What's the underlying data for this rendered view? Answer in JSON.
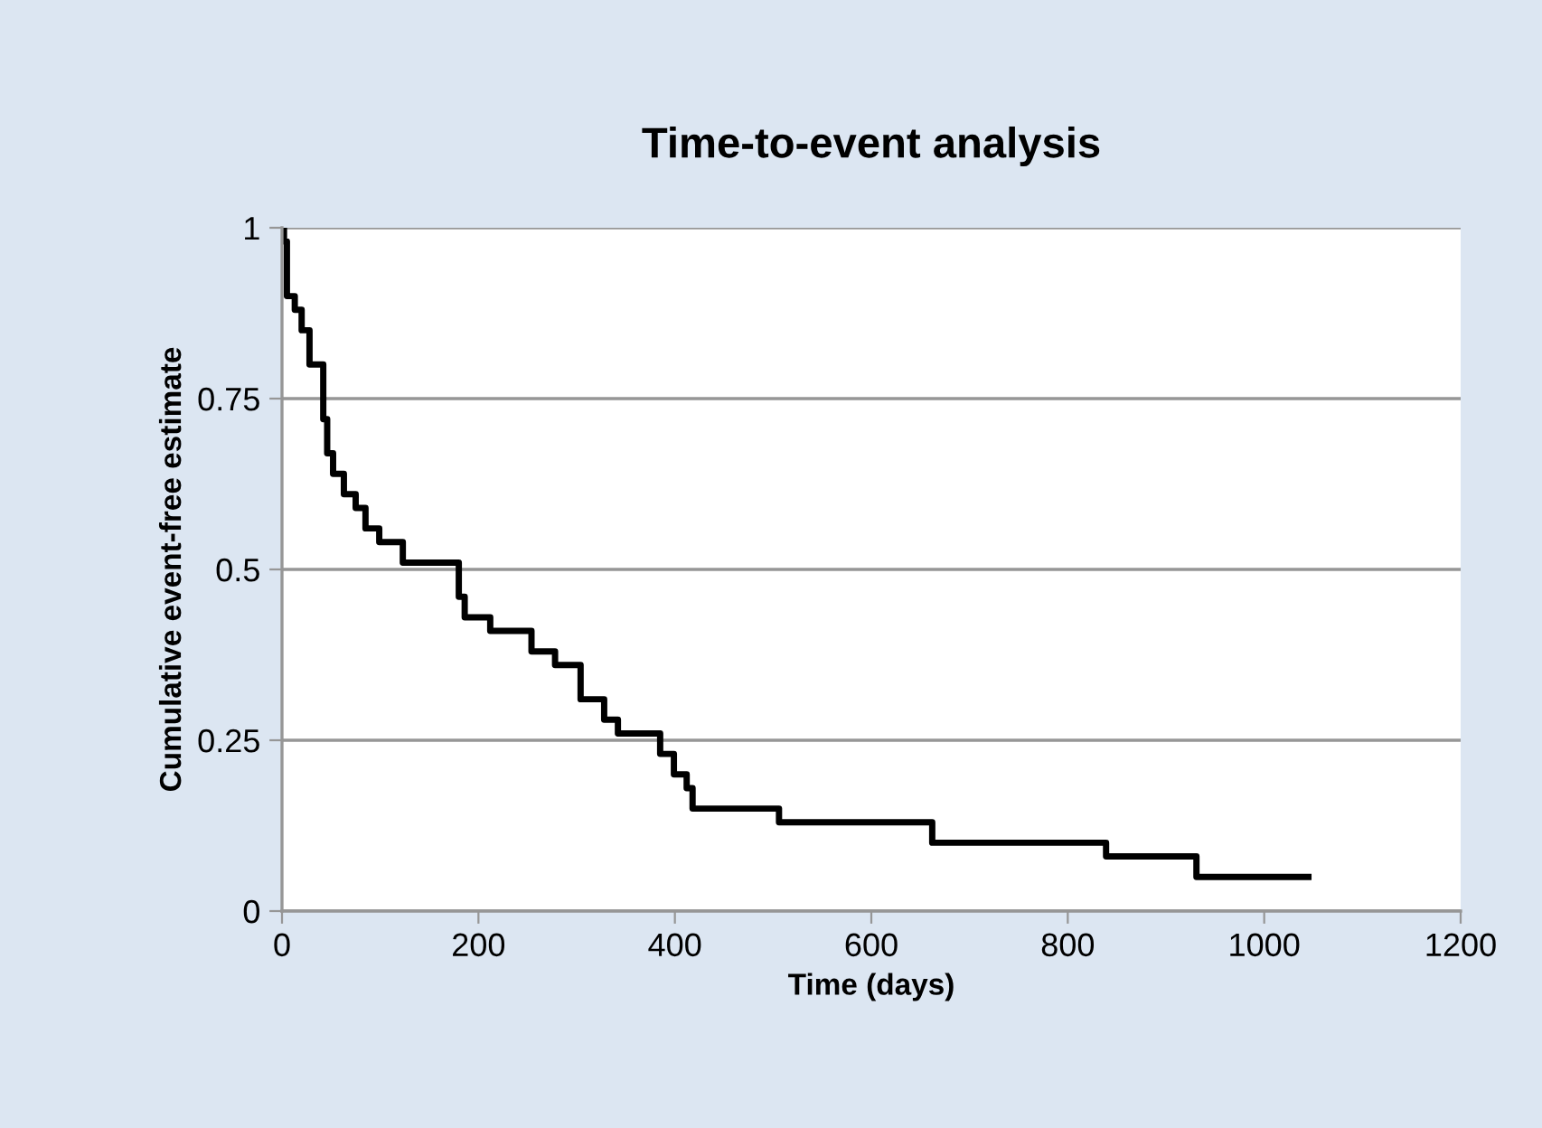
{
  "chart_data": {
    "type": "step",
    "title": "Time-to-event analysis",
    "xlabel": "Time (days)",
    "ylabel": "Cumulative event-free estimate",
    "series": [
      {
        "color": "#000000",
        "x": [
          0,
          2,
          5,
          13,
          20,
          28,
          42,
          46,
          52,
          63,
          75,
          85,
          99,
          123,
          180,
          186,
          212,
          254,
          278,
          304,
          328,
          342,
          385,
          399,
          412,
          418,
          506,
          662,
          839,
          931,
          1045
        ],
        "values": [
          1.0,
          0.98,
          0.9,
          0.88,
          0.85,
          0.8,
          0.72,
          0.67,
          0.64,
          0.61,
          0.59,
          0.56,
          0.54,
          0.51,
          0.46,
          0.43,
          0.41,
          0.38,
          0.36,
          0.31,
          0.28,
          0.26,
          0.23,
          0.2,
          0.18,
          0.15,
          0.13,
          0.1,
          0.08,
          0.05,
          0.05
        ]
      }
    ],
    "xlim": [
      0,
      1200
    ],
    "xticks": [
      0,
      200,
      400,
      600,
      800,
      1000,
      1200
    ],
    "ylim": [
      0,
      1
    ],
    "yticks": [
      0,
      {
        "value": 0.25,
        "label": "0.25"
      },
      {
        "value": 0.5,
        "label": "0.5"
      },
      {
        "value": 0.75,
        "label": "0.75"
      },
      1
    ],
    "grid": "y",
    "legend": false
  }
}
